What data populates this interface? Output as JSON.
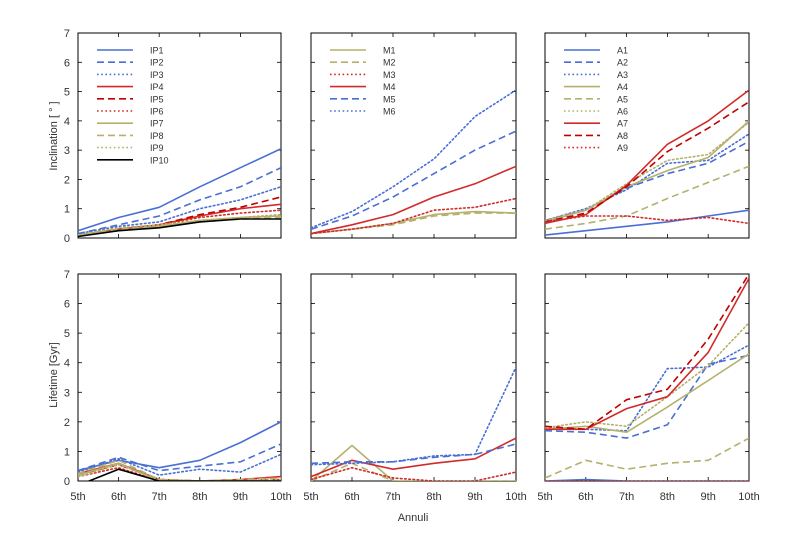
{
  "figure": {
    "xlabel": "Annuli",
    "ylabel_top": "Inclination [ ° ]",
    "ylabel_bottom": "Lifetime [Gyr]"
  },
  "chart_data": [
    {
      "type": "line",
      "row": "inclination",
      "categories": [
        "5th",
        "6th",
        "7th",
        "8th",
        "9th",
        "10th"
      ],
      "ylim": [
        0,
        7
      ],
      "legend": "top-left",
      "series": [
        {
          "name": "IP1",
          "color": "#4a6fd4",
          "dash": "solid",
          "values": [
            0.25,
            0.7,
            1.05,
            1.75,
            2.4,
            3.05
          ]
        },
        {
          "name": "IP2",
          "color": "#4a6fd4",
          "dash": "dashed",
          "values": [
            0.15,
            0.45,
            0.75,
            1.3,
            1.75,
            2.4
          ]
        },
        {
          "name": "IP3",
          "color": "#4a6fd4",
          "dash": "dotted",
          "values": [
            0.15,
            0.4,
            0.55,
            1.0,
            1.3,
            1.75
          ]
        },
        {
          "name": "IP4",
          "color": "#d22a2a",
          "dash": "solid",
          "values": [
            0.1,
            0.3,
            0.45,
            0.75,
            1.0,
            1.15
          ]
        },
        {
          "name": "IP5",
          "color": "#c00000",
          "dash": "dashed",
          "values": [
            0.1,
            0.3,
            0.45,
            0.8,
            1.05,
            1.4
          ]
        },
        {
          "name": "IP6",
          "color": "#d22a2a",
          "dash": "dotted",
          "values": [
            0.1,
            0.3,
            0.45,
            0.7,
            0.85,
            0.95
          ]
        },
        {
          "name": "IP7",
          "color": "#b5b16c",
          "dash": "solid",
          "values": [
            0.1,
            0.25,
            0.4,
            0.6,
            0.7,
            0.75
          ]
        },
        {
          "name": "IP8",
          "color": "#b5b16c",
          "dash": "dashed",
          "values": [
            0.1,
            0.3,
            0.4,
            0.55,
            0.65,
            0.7
          ]
        },
        {
          "name": "IP9",
          "color": "#b5b16c",
          "dash": "dotted",
          "values": [
            0.1,
            0.35,
            0.45,
            0.6,
            0.7,
            0.8
          ]
        },
        {
          "name": "IP10",
          "color": "#000000",
          "dash": "solid",
          "values": [
            0.05,
            0.25,
            0.35,
            0.55,
            0.65,
            0.65
          ]
        }
      ]
    },
    {
      "type": "line",
      "row": "inclination",
      "categories": [
        "5th",
        "6th",
        "7th",
        "8th",
        "9th",
        "10th"
      ],
      "ylim": [
        0,
        7
      ],
      "legend": "top-left",
      "series": [
        {
          "name": "M1",
          "color": "#b5b16c",
          "dash": "solid",
          "values": [
            0.15,
            0.3,
            0.5,
            0.8,
            0.9,
            0.85
          ]
        },
        {
          "name": "M2",
          "color": "#b5b16c",
          "dash": "dashed",
          "values": [
            0.15,
            0.3,
            0.45,
            0.75,
            0.85,
            0.85
          ]
        },
        {
          "name": "M3",
          "color": "#d22a2a",
          "dash": "dotted",
          "values": [
            0.15,
            0.3,
            0.5,
            0.95,
            1.05,
            1.35
          ]
        },
        {
          "name": "M4",
          "color": "#d22a2a",
          "dash": "solid",
          "values": [
            0.15,
            0.45,
            0.8,
            1.4,
            1.85,
            2.45
          ]
        },
        {
          "name": "M5",
          "color": "#4a6fd4",
          "dash": "dashed",
          "values": [
            0.3,
            0.75,
            1.4,
            2.2,
            3.0,
            3.65
          ]
        },
        {
          "name": "M6",
          "color": "#4a6fd4",
          "dash": "dotted",
          "values": [
            0.35,
            0.9,
            1.75,
            2.7,
            4.15,
            5.05
          ]
        }
      ]
    },
    {
      "type": "line",
      "row": "inclination",
      "categories": [
        "5th",
        "6th",
        "7th",
        "8th",
        "9th",
        "10th"
      ],
      "ylim": [
        0,
        7
      ],
      "legend": "top-left",
      "series": [
        {
          "name": "A1",
          "color": "#4a6fd4",
          "dash": "solid",
          "values": [
            0.1,
            0.25,
            0.4,
            0.55,
            0.75,
            0.95
          ]
        },
        {
          "name": "A2",
          "color": "#4a6fd4",
          "dash": "dashed",
          "values": [
            0.6,
            0.95,
            1.7,
            2.2,
            2.55,
            3.3
          ]
        },
        {
          "name": "A3",
          "color": "#4a6fd4",
          "dash": "dotted",
          "values": [
            0.6,
            1.0,
            1.65,
            2.55,
            2.65,
            3.55
          ]
        },
        {
          "name": "A4",
          "color": "#b5b16c",
          "dash": "solid",
          "values": [
            0.55,
            0.95,
            1.75,
            2.3,
            2.75,
            4.0
          ]
        },
        {
          "name": "A5",
          "color": "#b5b16c",
          "dash": "dashed",
          "values": [
            0.3,
            0.5,
            0.75,
            1.35,
            1.9,
            2.45
          ]
        },
        {
          "name": "A6",
          "color": "#b5b16c",
          "dash": "dotted",
          "values": [
            0.6,
            0.95,
            1.85,
            2.65,
            2.85,
            3.95
          ]
        },
        {
          "name": "A7",
          "color": "#d22a2a",
          "dash": "solid",
          "values": [
            0.5,
            0.8,
            1.8,
            3.2,
            4.0,
            5.05
          ]
        },
        {
          "name": "A8",
          "color": "#c00000",
          "dash": "dashed",
          "values": [
            0.55,
            0.85,
            1.75,
            2.95,
            3.75,
            4.65
          ]
        },
        {
          "name": "A9",
          "color": "#d22a2a",
          "dash": "dotted",
          "values": [
            0.55,
            0.75,
            0.75,
            0.6,
            0.7,
            0.5
          ]
        }
      ]
    },
    {
      "type": "line",
      "row": "lifetime",
      "categories": [
        "5th",
        "6th",
        "7th",
        "8th",
        "9th",
        "10th"
      ],
      "ylim": [
        0,
        7
      ],
      "series": [
        {
          "color": "#4a6fd4",
          "dash": "solid",
          "values": [
            0.35,
            0.7,
            0.45,
            0.7,
            1.3,
            2.0
          ]
        },
        {
          "color": "#4a6fd4",
          "dash": "dashed",
          "values": [
            0.35,
            0.8,
            0.35,
            0.5,
            0.65,
            1.25
          ]
        },
        {
          "color": "#4a6fd4",
          "dash": "dotted",
          "values": [
            0.3,
            0.75,
            0.2,
            0.4,
            0.3,
            0.9
          ]
        },
        {
          "color": "#d22a2a",
          "dash": "solid",
          "values": [
            0.25,
            0.6,
            0.05,
            0.0,
            0.05,
            0.15
          ]
        },
        {
          "color": "#c00000",
          "dash": "dashed",
          "values": [
            0.2,
            0.55,
            0.05,
            0.0,
            0.0,
            0.05
          ]
        },
        {
          "color": "#d22a2a",
          "dash": "dotted",
          "values": [
            0.15,
            0.45,
            0.0,
            0.0,
            0.0,
            0.0
          ]
        },
        {
          "color": "#b5b16c",
          "dash": "solid",
          "values": [
            0.2,
            0.6,
            0.0,
            0.0,
            0.0,
            0.0
          ]
        },
        {
          "color": "#b5b16c",
          "dash": "dashed",
          "values": [
            0.25,
            0.7,
            0.05,
            0.0,
            0.05,
            0.1
          ]
        },
        {
          "color": "#b5b16c",
          "dash": "dotted",
          "values": [
            0.15,
            0.55,
            0.05,
            0.0,
            0.0,
            0.05
          ]
        },
        {
          "color": "#000000",
          "dash": "solid",
          "values": [
            -0.15,
            0.4,
            0.0,
            0.0,
            0.0,
            0.0
          ]
        }
      ]
    },
    {
      "type": "line",
      "row": "lifetime",
      "categories": [
        "5th",
        "6th",
        "7th",
        "8th",
        "9th",
        "10th"
      ],
      "ylim": [
        0,
        7
      ],
      "series": [
        {
          "color": "#b5b16c",
          "dash": "solid",
          "values": [
            0.0,
            1.2,
            0.0,
            0.0,
            0.0,
            0.0
          ]
        },
        {
          "color": "#b5b16c",
          "dash": "dashed",
          "values": [
            0.0,
            0.6,
            0.0,
            0.0,
            0.0,
            0.0
          ]
        },
        {
          "color": "#d22a2a",
          "dash": "dotted",
          "values": [
            0.05,
            0.45,
            0.1,
            0.0,
            0.0,
            0.3
          ]
        },
        {
          "color": "#d22a2a",
          "dash": "solid",
          "values": [
            0.15,
            0.7,
            0.4,
            0.6,
            0.75,
            1.45
          ]
        },
        {
          "color": "#4a6fd4",
          "dash": "dashed",
          "values": [
            0.6,
            0.65,
            0.65,
            0.8,
            0.9,
            1.25
          ]
        },
        {
          "color": "#4a6fd4",
          "dash": "dotted",
          "values": [
            0.55,
            0.6,
            0.65,
            0.85,
            0.9,
            3.85
          ]
        }
      ]
    },
    {
      "type": "line",
      "row": "lifetime",
      "categories": [
        "5th",
        "6th",
        "7th",
        "8th",
        "9th",
        "10th"
      ],
      "ylim": [
        0,
        7
      ],
      "series": [
        {
          "color": "#4a6fd4",
          "dash": "solid",
          "values": [
            0.0,
            0.05,
            0.0,
            0.0,
            0.0,
            0.0
          ]
        },
        {
          "color": "#4a6fd4",
          "dash": "dashed",
          "values": [
            1.7,
            1.65,
            1.45,
            1.9,
            3.95,
            4.25
          ]
        },
        {
          "color": "#4a6fd4",
          "dash": "dotted",
          "values": [
            1.8,
            1.75,
            1.7,
            3.8,
            3.85,
            4.6
          ]
        },
        {
          "color": "#b5b16c",
          "dash": "solid",
          "values": [
            1.75,
            1.85,
            1.65,
            2.5,
            3.4,
            4.3
          ]
        },
        {
          "color": "#b5b16c",
          "dash": "dashed",
          "values": [
            0.1,
            0.7,
            0.4,
            0.6,
            0.7,
            1.45
          ]
        },
        {
          "color": "#b5b16c",
          "dash": "dotted",
          "values": [
            1.8,
            2.0,
            1.85,
            2.85,
            3.9,
            5.35
          ]
        },
        {
          "color": "#d22a2a",
          "dash": "solid",
          "values": [
            1.75,
            1.75,
            2.45,
            2.85,
            4.35,
            6.85
          ]
        },
        {
          "color": "#c00000",
          "dash": "dashed",
          "values": [
            1.85,
            1.75,
            2.75,
            3.1,
            4.8,
            7.0
          ]
        },
        {
          "color": "#d22a2a",
          "dash": "dotted",
          "values": [
            0.0,
            0.0,
            0.0,
            0.0,
            0.0,
            0.0
          ]
        }
      ]
    }
  ]
}
